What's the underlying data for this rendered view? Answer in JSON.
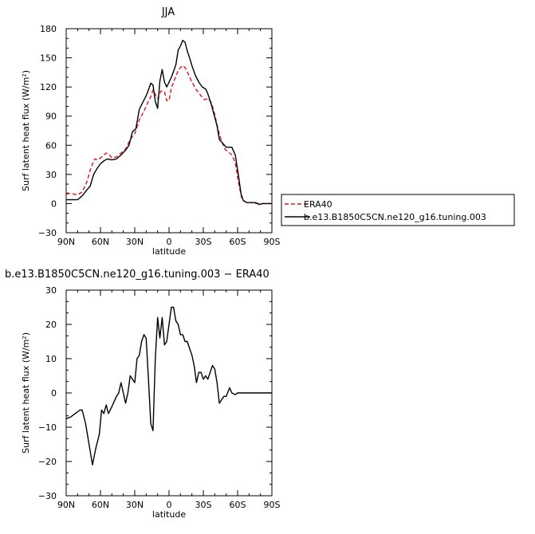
{
  "chart_data": [
    {
      "type": "line",
      "title": "JJA",
      "xlabel": "latitude",
      "ylabel": "Surf latent heat flux (W/m²)",
      "xlim": [
        90,
        -90
      ],
      "ylim": [
        -30,
        180
      ],
      "x_ticks": [
        90,
        60,
        30,
        0,
        -30,
        -60,
        -90
      ],
      "x_tick_labels": [
        "90N",
        "60N",
        "30N",
        "0",
        "30S",
        "60S",
        "90S"
      ],
      "y_ticks": [
        -30,
        0,
        30,
        60,
        90,
        120,
        150,
        180
      ],
      "y_tick_labels": [
        "−30",
        "0",
        "30",
        "60",
        "90",
        "120",
        "150",
        "180"
      ],
      "legend_position": "right",
      "series": [
        {
          "name": "ERA40",
          "color": "#e8101a",
          "dash": "dashed",
          "points": [
            [
              90,
              11
            ],
            [
              85,
              10
            ],
            [
              80,
              9
            ],
            [
              76,
              12
            ],
            [
              72,
              22
            ],
            [
              68,
              38
            ],
            [
              65,
              46
            ],
            [
              62,
              45
            ],
            [
              58,
              49
            ],
            [
              55,
              52
            ],
            [
              52,
              50
            ],
            [
              50,
              47
            ],
            [
              46,
              48
            ],
            [
              42,
              52
            ],
            [
              38,
              56
            ],
            [
              34,
              66
            ],
            [
              30,
              72
            ],
            [
              26,
              86
            ],
            [
              22,
              95
            ],
            [
              19,
              103
            ],
            [
              16,
              110
            ],
            [
              14,
              117
            ],
            [
              12,
              112
            ],
            [
              10,
              108
            ],
            [
              7,
              116
            ],
            [
              4,
              115
            ],
            [
              2,
              106
            ],
            [
              0,
              106
            ],
            [
              -2,
              119
            ],
            [
              -5,
              128
            ],
            [
              -8,
              137
            ],
            [
              -10,
              140
            ],
            [
              -12,
              142
            ],
            [
              -14,
              140
            ],
            [
              -17,
              133
            ],
            [
              -20,
              125
            ],
            [
              -24,
              117
            ],
            [
              -28,
              111
            ],
            [
              -31,
              107
            ],
            [
              -34,
              108
            ],
            [
              -37,
              104
            ],
            [
              -40,
              92
            ],
            [
              -43,
              76
            ],
            [
              -46,
              64
            ],
            [
              -49,
              56
            ],
            [
              -52,
              53
            ],
            [
              -55,
              50
            ],
            [
              -58,
              42
            ],
            [
              -61,
              20
            ],
            [
              -64,
              4
            ],
            [
              -68,
              1
            ],
            [
              -72,
              1
            ],
            [
              -76,
              0
            ],
            [
              -80,
              0
            ],
            [
              -85,
              0
            ],
            [
              -90,
              0
            ]
          ]
        },
        {
          "name": "b.e13.B1850C5CN.ne120_g16.tuning.003",
          "color": "#000000",
          "dash": "solid",
          "points": [
            [
              90,
              4
            ],
            [
              85,
              4
            ],
            [
              80,
              4
            ],
            [
              76,
              8
            ],
            [
              72,
              14
            ],
            [
              69,
              18
            ],
            [
              66,
              30
            ],
            [
              63,
              36
            ],
            [
              60,
              41
            ],
            [
              57,
              44
            ],
            [
              54,
              46
            ],
            [
              50,
              45
            ],
            [
              46,
              46
            ],
            [
              42,
              50
            ],
            [
              38,
              55
            ],
            [
              35,
              60
            ],
            [
              32,
              74
            ],
            [
              29,
              77
            ],
            [
              26,
              97
            ],
            [
              23,
              104
            ],
            [
              20,
              111
            ],
            [
              18,
              117
            ],
            [
              16,
              124
            ],
            [
              14,
              122
            ],
            [
              12,
              105
            ],
            [
              10,
              98
            ],
            [
              8,
              126
            ],
            [
              6,
              138
            ],
            [
              4,
              125
            ],
            [
              2,
              120
            ],
            [
              0,
              125
            ],
            [
              -2,
              130
            ],
            [
              -4,
              136
            ],
            [
              -6,
              143
            ],
            [
              -8,
              158
            ],
            [
              -10,
              162
            ],
            [
              -12,
              168
            ],
            [
              -14,
              166
            ],
            [
              -16,
              157
            ],
            [
              -18,
              150
            ],
            [
              -20,
              142
            ],
            [
              -23,
              132
            ],
            [
              -26,
              125
            ],
            [
              -29,
              120
            ],
            [
              -32,
              118
            ],
            [
              -34,
              113
            ],
            [
              -37,
              102
            ],
            [
              -40,
              89
            ],
            [
              -42,
              80
            ],
            [
              -44,
              66
            ],
            [
              -47,
              62
            ],
            [
              -50,
              58
            ],
            [
              -53,
              58
            ],
            [
              -55,
              58
            ],
            [
              -58,
              50
            ],
            [
              -61,
              27
            ],
            [
              -63,
              10
            ],
            [
              -65,
              3
            ],
            [
              -68,
              1
            ],
            [
              -72,
              1
            ],
            [
              -76,
              1
            ],
            [
              -79,
              -1
            ],
            [
              -82,
              0
            ],
            [
              -86,
              0
            ],
            [
              -90,
              0
            ]
          ]
        }
      ]
    },
    {
      "type": "line",
      "title": "b.e13.B1850C5CN.ne120_g16.tuning.003 − ERA40",
      "xlabel": "latitude",
      "ylabel": "Surf latent heat flux (W/m²)",
      "xlim": [
        90,
        -90
      ],
      "ylim": [
        -30,
        30
      ],
      "x_ticks": [
        90,
        60,
        30,
        0,
        -30,
        -60,
        -90
      ],
      "x_tick_labels": [
        "90N",
        "60N",
        "30N",
        "0",
        "30S",
        "60S",
        "90S"
      ],
      "y_ticks": [
        -30,
        -20,
        -10,
        0,
        10,
        20,
        30
      ],
      "y_tick_labels": [
        "−30",
        "−20",
        "−10",
        "0",
        "10",
        "20",
        "30"
      ],
      "series": [
        {
          "color": "#000000",
          "dash": "solid",
          "points": [
            [
              90,
              -7.5
            ],
            [
              86,
              -7
            ],
            [
              82,
              -6
            ],
            [
              78,
              -5
            ],
            [
              76,
              -5
            ],
            [
              73,
              -9
            ],
            [
              70,
              -15
            ],
            [
              67,
              -21
            ],
            [
              64,
              -16
            ],
            [
              61,
              -12
            ],
            [
              59,
              -5
            ],
            [
              57,
              -6
            ],
            [
              55,
              -3.5
            ],
            [
              53,
              -6
            ],
            [
              50,
              -4
            ],
            [
              46,
              -1
            ],
            [
              44,
              0
            ],
            [
              42,
              3
            ],
            [
              40,
              0
            ],
            [
              38,
              -3
            ],
            [
              36,
              0
            ],
            [
              34,
              5
            ],
            [
              32,
              4
            ],
            [
              30,
              3
            ],
            [
              28,
              10
            ],
            [
              26,
              11
            ],
            [
              24,
              15
            ],
            [
              22,
              17
            ],
            [
              20,
              16
            ],
            [
              18,
              4
            ],
            [
              16,
              -9
            ],
            [
              14,
              -11
            ],
            [
              12,
              10
            ],
            [
              10,
              22
            ],
            [
              8,
              16
            ],
            [
              6,
              22
            ],
            [
              4,
              14
            ],
            [
              2,
              15
            ],
            [
              0,
              20
            ],
            [
              -2,
              25
            ],
            [
              -4,
              25
            ],
            [
              -6,
              21
            ],
            [
              -8,
              20
            ],
            [
              -10,
              17
            ],
            [
              -12,
              17
            ],
            [
              -14,
              15
            ],
            [
              -16,
              15
            ],
            [
              -18,
              13
            ],
            [
              -20,
              11
            ],
            [
              -22,
              8
            ],
            [
              -24,
              3
            ],
            [
              -26,
              6
            ],
            [
              -28,
              6
            ],
            [
              -30,
              4
            ],
            [
              -32,
              5
            ],
            [
              -34,
              4
            ],
            [
              -36,
              6
            ],
            [
              -38,
              8
            ],
            [
              -40,
              7
            ],
            [
              -42,
              3
            ],
            [
              -44,
              -3
            ],
            [
              -46,
              -2
            ],
            [
              -48,
              -1
            ],
            [
              -50,
              -1
            ],
            [
              -53,
              1.5
            ],
            [
              -55,
              0
            ],
            [
              -58,
              -0.5
            ],
            [
              -60,
              0
            ],
            [
              -63,
              0
            ],
            [
              -66,
              0
            ],
            [
              -70,
              0
            ],
            [
              -75,
              0
            ],
            [
              -80,
              0
            ],
            [
              -85,
              0
            ],
            [
              -90,
              0
            ]
          ]
        }
      ]
    }
  ]
}
